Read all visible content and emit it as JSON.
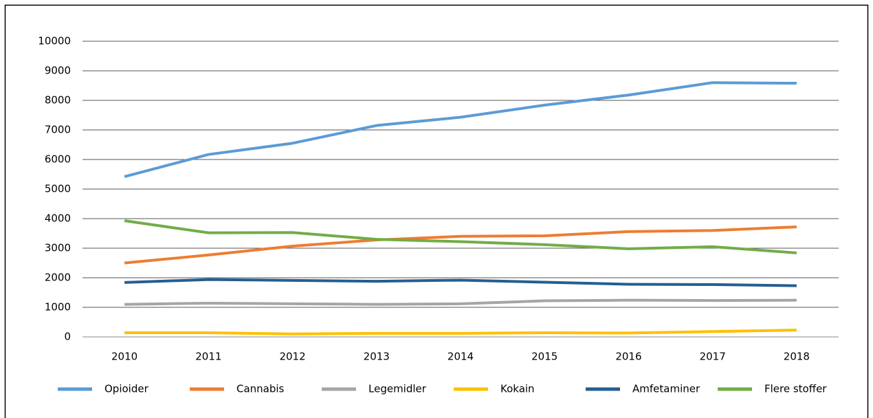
{
  "chart_data": {
    "type": "line",
    "categories": [
      "2010",
      "2011",
      "2012",
      "2013",
      "2014",
      "2015",
      "2016",
      "2017",
      "2018"
    ],
    "series": [
      {
        "name": "Opioider",
        "color": "#5b9bd5",
        "values": [
          5420,
          6170,
          6550,
          7150,
          7430,
          7840,
          8180,
          8600,
          8580
        ]
      },
      {
        "name": "Cannabis",
        "color": "#ed7d31",
        "values": [
          2500,
          2770,
          3070,
          3280,
          3400,
          3420,
          3560,
          3600,
          3720
        ]
      },
      {
        "name": "Legemidler",
        "color": "#a5a5a5",
        "values": [
          1100,
          1140,
          1120,
          1100,
          1120,
          1220,
          1240,
          1230,
          1240
        ]
      },
      {
        "name": "Kokain",
        "color": "#ffc000",
        "values": [
          140,
          140,
          100,
          120,
          120,
          140,
          130,
          180,
          230
        ]
      },
      {
        "name": "Amfetaminer",
        "color": "#255e91",
        "values": [
          1840,
          1940,
          1910,
          1880,
          1920,
          1850,
          1780,
          1770,
          1730
        ]
      },
      {
        "name": "Flere stoffer",
        "color": "#70ad47",
        "values": [
          3930,
          3520,
          3530,
          3300,
          3220,
          3120,
          2980,
          3050,
          2840
        ]
      }
    ],
    "ylim": [
      0,
      10000
    ],
    "yticks": [
      0,
      1000,
      2000,
      3000,
      4000,
      5000,
      6000,
      7000,
      8000,
      9000,
      10000
    ],
    "grid": true,
    "legend": "bottom"
  }
}
